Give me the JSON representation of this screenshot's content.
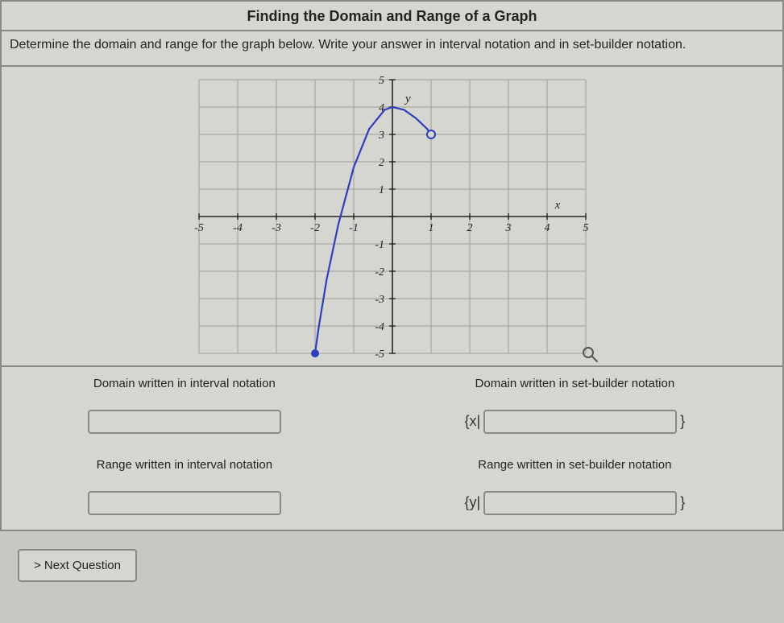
{
  "title": "Finding the Domain and Range of a Graph",
  "instructions": "Determine the domain and range for the graph below. Write your answer in interval notation and in set-builder notation.",
  "labels": {
    "domain_interval": "Domain written in interval notation",
    "domain_setbuilder": "Domain written in set-builder notation",
    "range_interval": "Range written in interval notation",
    "range_setbuilder": "Range written in set-builder notation",
    "x_prefix": "{x|",
    "y_prefix": "{y|",
    "close_brace": "}"
  },
  "next_button": "> Next Question",
  "graph": {
    "type": "function-plot",
    "xlim": [
      -5,
      5
    ],
    "ylim": [
      -5,
      5
    ],
    "xtick_step": 1,
    "ytick_step": 1,
    "x_axis_label": "x",
    "y_axis_label": "y",
    "axis_label_fontsize": 15,
    "tick_fontsize": 14,
    "background_color": "#d6d6d0",
    "grid_color": "#9e9e96",
    "axis_color": "#222222",
    "curve": {
      "color": "#2b3fbf",
      "width": 2.2,
      "points": [
        [
          -2,
          -5
        ],
        [
          -1.9,
          -4.0
        ],
        [
          -1.7,
          -2.3
        ],
        [
          -1.4,
          -0.3
        ],
        [
          -1.0,
          1.8
        ],
        [
          -0.6,
          3.2
        ],
        [
          -0.2,
          3.9
        ],
        [
          0.0,
          4.0
        ],
        [
          0.3,
          3.9
        ],
        [
          0.6,
          3.6
        ],
        [
          0.9,
          3.2
        ],
        [
          1.0,
          3.0
        ]
      ],
      "left_endpoint": {
        "x": -2,
        "y": -5,
        "type": "closed",
        "radius": 5,
        "fill": "#2b3fbf"
      },
      "right_endpoint": {
        "x": 1,
        "y": 3,
        "type": "open",
        "radius": 5,
        "stroke": "#2b3fbf",
        "fill": "#d6d6d0"
      }
    }
  },
  "colors": {
    "page_bg": "#c8c8c2",
    "panel_bg": "#d6d6d0",
    "border": "#888888",
    "text": "#222222"
  }
}
